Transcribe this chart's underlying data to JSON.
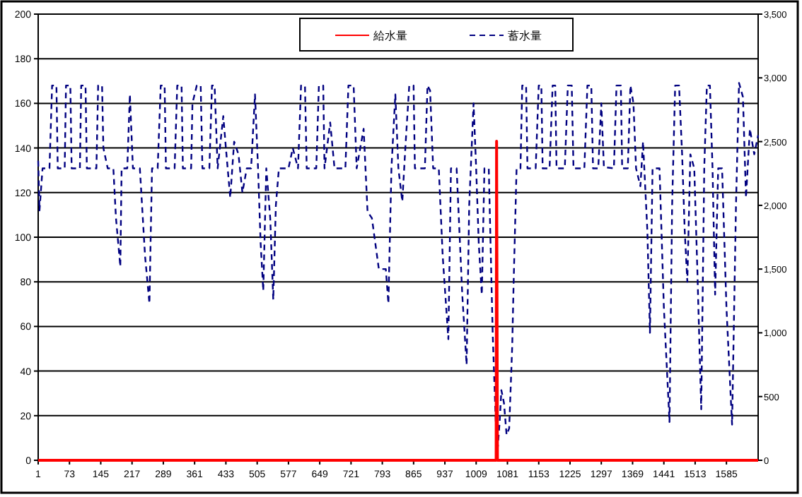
{
  "chart_data": {
    "type": "line",
    "xlim": [
      1,
      1658
    ],
    "xticks": [
      1,
      73,
      145,
      217,
      289,
      361,
      433,
      505,
      577,
      649,
      721,
      793,
      865,
      937,
      1009,
      1081,
      1153,
      1225,
      1297,
      1369,
      1441,
      1513,
      1585
    ],
    "ylim": [
      0,
      200
    ],
    "yticks": [
      0,
      20,
      40,
      60,
      80,
      100,
      120,
      140,
      160,
      180,
      200
    ],
    "y2lim": [
      0,
      3500
    ],
    "y2ticks": [
      0,
      500,
      {
        "value": 1000,
        "label": "1,000"
      },
      {
        "value": 1500,
        "label": "1,500"
      },
      {
        "value": 2000,
        "label": "2,000"
      },
      {
        "value": 2500,
        "label": "2,500"
      },
      {
        "value": 3000,
        "label": "3,000"
      },
      {
        "value": 3500,
        "label": "3,500"
      }
    ],
    "grid": "y",
    "legend": "top",
    "marker": "none",
    "series": [
      {
        "name": "給水量",
        "color": "#ff0000",
        "line_style": "solid",
        "x": [
          1,
          1055,
          1056,
          1058,
          1658
        ],
        "values": [
          0,
          0,
          143,
          0,
          0
        ]
      },
      {
        "name": "蓄水量",
        "color": "#000080",
        "line_style": "dashed",
        "axis": "y2",
        "x": [
          1,
          4,
          11,
          27,
          33,
          43,
          46,
          62,
          65,
          75,
          78,
          97,
          100,
          110,
          113,
          135,
          139,
          148,
          151,
          161,
          174,
          180,
          190,
          193,
          206,
          212,
          219,
          235,
          247,
          257,
          263,
          276,
          283,
          292,
          295,
          315,
          321,
          331,
          334,
          353,
          356,
          366,
          375,
          379,
          395,
          401,
          407,
          414,
          427,
          433,
          443,
          452,
          462,
          471,
          481,
          491,
          500,
          507,
          513,
          519,
          526,
          535,
          542,
          548,
          555,
          577,
          587,
          599,
          606,
          615,
          619,
          641,
          647,
          657,
          660,
          673,
          683,
          708,
          715,
          727,
          734,
          750,
          759,
          769,
          785,
          801,
          807,
          814,
          823,
          830,
          839,
          846,
          855,
          865,
          868,
          891,
          897,
          903,
          910,
          923,
          932,
          945,
          951,
          964,
          977,
          987,
          993,
          1003,
          1009,
          1015,
          1022,
          1028,
          1038,
          1047,
          1057,
          1063,
          1067,
          1073,
          1079,
          1085,
          1092,
          1095,
          1102,
          1111,
          1115,
          1124,
          1127,
          1146,
          1153,
          1159,
          1162,
          1178,
          1185,
          1191,
          1194,
          1213,
          1220,
          1229,
          1233,
          1258,
          1265,
          1274,
          1278,
          1290,
          1297,
          1303,
          1326,
          1332,
          1342,
          1345,
          1358,
          1364,
          1371,
          1377,
          1387,
          1393,
          1403,
          1409,
          1415,
          1431,
          1441,
          1454,
          1460,
          1467,
          1476,
          1483,
          1489,
          1495,
          1502,
          1511,
          1518,
          1527,
          1534,
          1540,
          1547,
          1553,
          1559,
          1566,
          1575,
          1585,
          1598,
          1607,
          1614,
          1623,
          1630,
          1639,
          1649,
          1658
        ],
        "values": [
          2350,
          1960,
          2290,
          2290,
          2940,
          2940,
          2290,
          2290,
          2940,
          2940,
          2290,
          2290,
          2940,
          2940,
          2290,
          2290,
          2940,
          2940,
          2450,
          2290,
          2290,
          1900,
          1520,
          2290,
          2290,
          2870,
          2290,
          2290,
          1600,
          1230,
          2290,
          2290,
          2940,
          2940,
          2290,
          2290,
          2940,
          2940,
          2290,
          2290,
          2800,
          2940,
          2940,
          2290,
          2290,
          2940,
          2940,
          2290,
          2700,
          2450,
          2060,
          2500,
          2400,
          2100,
          2290,
          2290,
          2870,
          2290,
          1700,
          1330,
          2290,
          1900,
          1260,
          2000,
          2290,
          2290,
          2450,
          2290,
          2940,
          2940,
          2290,
          2290,
          2940,
          2940,
          2290,
          2650,
          2290,
          2290,
          2940,
          2940,
          2290,
          2600,
          1950,
          1900,
          1500,
          1500,
          1230,
          2290,
          2870,
          2290,
          2030,
          2450,
          2940,
          2940,
          2290,
          2290,
          2940,
          2900,
          2290,
          2290,
          1600,
          950,
          2290,
          2290,
          1300,
          750,
          2000,
          2800,
          2290,
          1700,
          1300,
          2290,
          2290,
          1000,
          20,
          300,
          550,
          450,
          200,
          250,
          900,
          1360,
          2290,
          2290,
          2940,
          2940,
          2290,
          2290,
          2940,
          2940,
          2290,
          2290,
          2940,
          2940,
          2290,
          2290,
          2940,
          2940,
          2290,
          2290,
          2940,
          2940,
          2290,
          2290,
          2800,
          2300,
          2290,
          2940,
          2940,
          2290,
          2290,
          2940,
          2800,
          2290,
          2150,
          2500,
          1800,
          1000,
          2290,
          2290,
          1200,
          300,
          2000,
          2940,
          2940,
          2400,
          1800,
          1400,
          2400,
          2290,
          1500,
          400,
          2300,
          2940,
          2940,
          2290,
          1300,
          2290,
          2290,
          1200,
          280,
          2000,
          2960,
          2850,
          2060,
          2600,
          2400,
          2550
        ]
      }
    ]
  }
}
